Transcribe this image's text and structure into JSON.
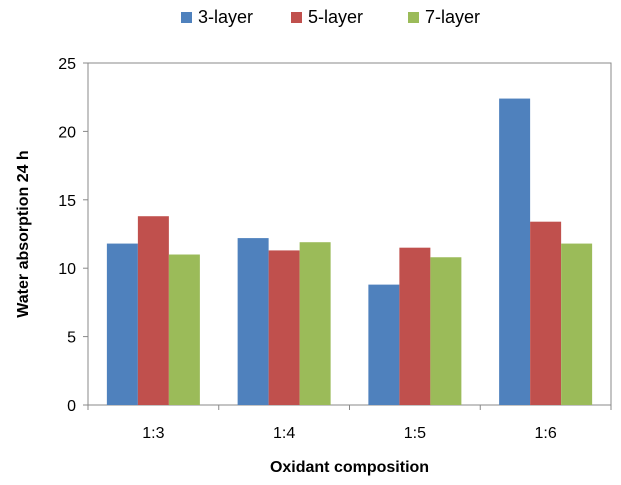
{
  "chart_data": {
    "type": "bar",
    "title": "",
    "xlabel": "Oxidant composition",
    "ylabel": "Water absorption 24 h",
    "categories": [
      "1:3",
      "1:4",
      "1:5",
      "1:6"
    ],
    "series": [
      {
        "name": "3-layer",
        "color": "#4f81bd",
        "values": [
          11.8,
          12.2,
          8.8,
          22.4
        ]
      },
      {
        "name": "5-layer",
        "color": "#c0504d",
        "values": [
          13.8,
          11.3,
          11.5,
          13.4
        ]
      },
      {
        "name": "7-layer",
        "color": "#9bbb59",
        "values": [
          11.0,
          11.9,
          10.8,
          11.8
        ]
      }
    ],
    "ylim": [
      0,
      25
    ],
    "yticks": [
      0,
      5,
      10,
      15,
      20,
      25
    ],
    "grid": false,
    "legend_position": "top"
  }
}
